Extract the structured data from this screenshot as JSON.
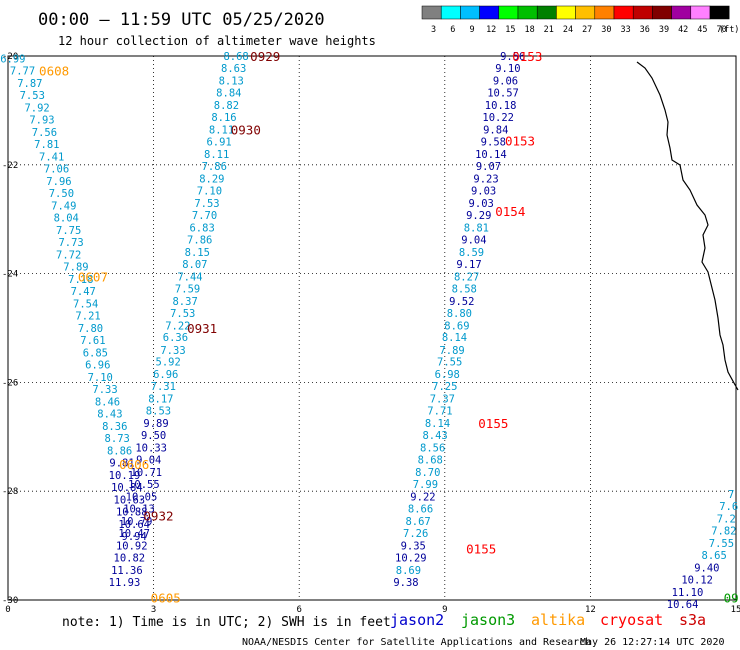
{
  "header": {
    "title": "00:00 – 11:59 UTC 05/25/2020",
    "subtitle": "12 hour collection of altimeter wave heights"
  },
  "colorbar": {
    "labels": [
      "3",
      "6",
      "9",
      "12",
      "15",
      "18",
      "21",
      "24",
      "27",
      "30",
      "33",
      "36",
      "39",
      "42",
      "45",
      "70",
      "(ft)"
    ],
    "colors": [
      "#808080",
      "#00ffff",
      "#00bfff",
      "#0000ff",
      "#00ff00",
      "#00bf00",
      "#008000",
      "#ffff00",
      "#ffbf00",
      "#ff8000",
      "#ff0000",
      "#bf0000",
      "#800000",
      "#a000a0",
      "#ff80ff",
      "#000000"
    ]
  },
  "footer": {
    "note": "note: 1) Time is in UTC; 2) SWH is in feet",
    "legend": [
      {
        "name": "jason2",
        "color": "#0000cc"
      },
      {
        "name": "jason3",
        "color": "#009900"
      },
      {
        "name": "altika",
        "color": "#ff9900"
      },
      {
        "name": "cryosat",
        "color": "#ff0000"
      },
      {
        "name": "s3a",
        "color": "#cc0000"
      }
    ],
    "credit_left": "NOAA/NESDIS Center for Satellite Applications and Research",
    "credit_right": "May 26 12:27:14 UTC 2020"
  },
  "chart_data": {
    "type": "scatter",
    "title": "00:00 – 11:59 UTC 05/25/2020",
    "subtitle": "12 hour collection of altimeter wave heights",
    "xlim": [
      0,
      15
    ],
    "ylim": [
      -30,
      -20
    ],
    "x_ticks": [
      "0",
      "3",
      "6",
      "9",
      "12",
      "15"
    ],
    "y_ticks": [
      "-20",
      "-22",
      "-24",
      "-26",
      "-28",
      "-30"
    ],
    "grid": true,
    "units": "ft",
    "value_colors": {
      "lt9": "#0099cc",
      "9to12": "#000099",
      "ge12": "#0000cc"
    },
    "time_labels": [
      {
        "text": "0608",
        "color": "#ff9900",
        "lon": 0.95,
        "lat": -20.27
      },
      {
        "text": "0607",
        "color": "#ff9900",
        "lon": 1.75,
        "lat": -24.05
      },
      {
        "text": "0606",
        "color": "#ff9900",
        "lon": 2.6,
        "lat": -27.5
      },
      {
        "text": "0605",
        "color": "#ff9900",
        "lon": 3.25,
        "lat": -29.95
      },
      {
        "text": "0929",
        "color": "#800000",
        "lon": 5.3,
        "lat": -20.0
      },
      {
        "text": "0930",
        "color": "#800000",
        "lon": 4.9,
        "lat": -21.35
      },
      {
        "text": "0931",
        "color": "#800000",
        "lon": 4.0,
        "lat": -25.0
      },
      {
        "text": "0932",
        "color": "#800000",
        "lon": 3.1,
        "lat": -28.45
      },
      {
        "text": "0153",
        "color": "#ff0000",
        "lon": 10.7,
        "lat": -20.0
      },
      {
        "text": "0153",
        "color": "#ff0000",
        "lon": 10.55,
        "lat": -21.55
      },
      {
        "text": "0154",
        "color": "#ff0000",
        "lon": 10.35,
        "lat": -22.85
      },
      {
        "text": "0155",
        "color": "#ff0000",
        "lon": 10.0,
        "lat": -26.75
      },
      {
        "text": "0155",
        "color": "#ff0000",
        "lon": 9.75,
        "lat": -29.05
      },
      {
        "text": "09",
        "color": "#009900",
        "lon": 14.9,
        "lat": -29.95
      }
    ],
    "series": [
      {
        "name": "altika",
        "track": "0605-0608",
        "points": [
          [
            0.1,
            -20.05,
            "6.99"
          ],
          [
            0.3,
            -20.27,
            "7.77"
          ],
          [
            0.45,
            -20.5,
            "7.87"
          ],
          [
            0.5,
            -20.72,
            "7.53"
          ],
          [
            0.6,
            -20.95,
            "7.92"
          ],
          [
            0.7,
            -21.17,
            "7.93"
          ],
          [
            0.75,
            -21.4,
            "7.56"
          ],
          [
            0.8,
            -21.62,
            "7.81"
          ],
          [
            0.9,
            -21.85,
            "7.41"
          ],
          [
            1.0,
            -22.07,
            "7.06"
          ],
          [
            1.05,
            -22.3,
            "7.96"
          ],
          [
            1.1,
            -22.52,
            "7.50"
          ],
          [
            1.15,
            -22.75,
            "7.49"
          ],
          [
            1.2,
            -22.97,
            "8.04"
          ],
          [
            1.25,
            -23.2,
            "7.75"
          ],
          [
            1.3,
            -23.42,
            "7.73"
          ],
          [
            1.25,
            -23.65,
            "7.72"
          ],
          [
            1.4,
            -23.87,
            "7.89"
          ],
          [
            1.5,
            -24.1,
            "7.18"
          ],
          [
            1.55,
            -24.32,
            "7.47"
          ],
          [
            1.6,
            -24.55,
            "7.54"
          ],
          [
            1.65,
            -24.77,
            "7.21"
          ],
          [
            1.7,
            -25.0,
            "7.80"
          ],
          [
            1.75,
            -25.22,
            "7.61"
          ],
          [
            1.8,
            -25.45,
            "6.85"
          ],
          [
            1.85,
            -25.67,
            "6.96"
          ],
          [
            1.9,
            -25.9,
            "7.10"
          ],
          [
            2.0,
            -26.12,
            "7.33"
          ],
          [
            2.05,
            -26.35,
            "8.46"
          ],
          [
            2.1,
            -26.57,
            "8.43"
          ],
          [
            2.2,
            -26.8,
            "8.36"
          ],
          [
            2.25,
            -27.02,
            "8.73"
          ],
          [
            2.3,
            -27.25,
            "8.86"
          ],
          [
            2.35,
            -27.47,
            "9.81"
          ],
          [
            2.4,
            -27.7,
            "10.19"
          ],
          [
            2.45,
            -27.92,
            "10.84"
          ],
          [
            2.5,
            -28.15,
            "10.63"
          ],
          [
            2.55,
            -28.37,
            "10.88"
          ],
          [
            2.6,
            -28.6,
            "10.64"
          ],
          [
            2.6,
            -28.82,
            "9.94"
          ]
        ]
      },
      {
        "name": "altika",
        "track": "0929-0932",
        "points": [
          [
            4.7,
            -20.0,
            "8.68"
          ],
          [
            4.65,
            -20.22,
            "8.63"
          ],
          [
            4.6,
            -20.45,
            "8.13"
          ],
          [
            4.55,
            -20.67,
            "8.84"
          ],
          [
            4.5,
            -20.9,
            "8.82"
          ],
          [
            4.45,
            -21.12,
            "8.16"
          ],
          [
            4.4,
            -21.35,
            "8.11"
          ],
          [
            4.35,
            -21.57,
            "6.91"
          ],
          [
            4.3,
            -21.8,
            "8.11"
          ],
          [
            4.25,
            -22.02,
            "7.86"
          ],
          [
            4.2,
            -22.25,
            "8.29"
          ],
          [
            4.15,
            -22.47,
            "7.10"
          ],
          [
            4.1,
            -22.7,
            "7.53"
          ],
          [
            4.05,
            -22.92,
            "7.70"
          ],
          [
            4.0,
            -23.15,
            "6.83"
          ],
          [
            3.95,
            -23.37,
            "7.86"
          ],
          [
            3.9,
            -23.6,
            "8.15"
          ],
          [
            3.85,
            -23.82,
            "8.07"
          ],
          [
            3.75,
            -24.05,
            "7.44"
          ],
          [
            3.7,
            -24.27,
            "7.59"
          ],
          [
            3.65,
            -24.5,
            "8.37"
          ],
          [
            3.6,
            -24.72,
            "7.53"
          ],
          [
            3.5,
            -24.95,
            "7.22"
          ],
          [
            3.45,
            -25.17,
            "6.36"
          ],
          [
            3.4,
            -25.4,
            "7.33"
          ],
          [
            3.3,
            -25.62,
            "5.92"
          ],
          [
            3.25,
            -25.85,
            "6.96"
          ],
          [
            3.2,
            -26.07,
            "7.31"
          ],
          [
            3.15,
            -26.3,
            "8.17"
          ],
          [
            3.1,
            -26.52,
            "8.53"
          ],
          [
            3.05,
            -26.75,
            "9.89"
          ],
          [
            3.0,
            -26.97,
            "9.50"
          ],
          [
            2.95,
            -27.2,
            "10.33"
          ],
          [
            2.9,
            -27.42,
            "9.04"
          ],
          [
            2.85,
            -27.65,
            "10.71"
          ],
          [
            2.8,
            -27.87,
            "10.55"
          ],
          [
            2.75,
            -28.1,
            "10.05"
          ],
          [
            2.7,
            -28.32,
            "10.13"
          ],
          [
            2.65,
            -28.55,
            "10.79"
          ],
          [
            2.6,
            -28.77,
            "10.47"
          ],
          [
            2.55,
            -29.0,
            "10.92"
          ],
          [
            2.5,
            -29.22,
            "10.82"
          ],
          [
            2.45,
            -29.45,
            "11.36"
          ],
          [
            2.4,
            -29.67,
            "11.93"
          ]
        ]
      },
      {
        "name": "cryosat",
        "track": "0153-0155",
        "points": [
          [
            10.4,
            -20.0,
            "9.56"
          ],
          [
            10.3,
            -20.22,
            "9.10"
          ],
          [
            10.25,
            -20.45,
            "9.06"
          ],
          [
            10.2,
            -20.67,
            "10.57"
          ],
          [
            10.15,
            -20.9,
            "10.18"
          ],
          [
            10.1,
            -21.12,
            "10.22"
          ],
          [
            10.05,
            -21.35,
            "9.84"
          ],
          [
            10.0,
            -21.57,
            "9.58"
          ],
          [
            9.95,
            -21.8,
            "10.14"
          ],
          [
            9.9,
            -22.02,
            "9.07"
          ],
          [
            9.85,
            -22.25,
            "9.23"
          ],
          [
            9.8,
            -22.47,
            "9.03"
          ],
          [
            9.75,
            -22.7,
            "9.03"
          ],
          [
            9.7,
            -22.92,
            "9.29"
          ],
          [
            9.65,
            -23.15,
            "8.81"
          ],
          [
            9.6,
            -23.37,
            "9.04"
          ],
          [
            9.55,
            -23.6,
            "8.59"
          ],
          [
            9.5,
            -23.82,
            "9.17"
          ],
          [
            9.45,
            -24.05,
            "8.27"
          ],
          [
            9.4,
            -24.27,
            "8.58"
          ],
          [
            9.35,
            -24.5,
            "9.52"
          ],
          [
            9.3,
            -24.72,
            "8.80"
          ],
          [
            9.25,
            -24.95,
            "8.69"
          ],
          [
            9.2,
            -25.17,
            "8.14"
          ],
          [
            9.15,
            -25.4,
            "7.89"
          ],
          [
            9.1,
            -25.62,
            "7.55"
          ],
          [
            9.05,
            -25.85,
            "6.98"
          ],
          [
            9.0,
            -26.07,
            "7.25"
          ],
          [
            8.95,
            -26.3,
            "7.37"
          ],
          [
            8.9,
            -26.52,
            "7.71"
          ],
          [
            8.85,
            -26.75,
            "8.14"
          ],
          [
            8.8,
            -26.97,
            "8.43"
          ],
          [
            8.75,
            -27.2,
            "8.56"
          ],
          [
            8.7,
            -27.42,
            "8.68"
          ],
          [
            8.65,
            -27.65,
            "8.70"
          ],
          [
            8.6,
            -27.87,
            "7.99"
          ],
          [
            8.55,
            -28.1,
            "9.22"
          ],
          [
            8.5,
            -28.32,
            "8.66"
          ],
          [
            8.45,
            -28.55,
            "8.67"
          ],
          [
            8.4,
            -28.77,
            "7.26"
          ],
          [
            8.35,
            -29.0,
            "9.35"
          ],
          [
            8.3,
            -29.22,
            "10.29"
          ],
          [
            8.25,
            -29.45,
            "8.69"
          ],
          [
            8.2,
            -29.67,
            "9.38"
          ]
        ]
      },
      {
        "name": "jason3",
        "track": "09",
        "points": [
          [
            14.9,
            -28.05,
            "7"
          ],
          [
            14.85,
            -28.27,
            "7.6"
          ],
          [
            14.8,
            -28.5,
            "7.2"
          ],
          [
            14.75,
            -28.72,
            "7.82"
          ],
          [
            14.7,
            -28.95,
            "7.55"
          ],
          [
            14.55,
            -29.17,
            "8.65"
          ],
          [
            14.4,
            -29.4,
            "9.40"
          ],
          [
            14.2,
            -29.62,
            "10.12"
          ],
          [
            14.0,
            -29.85,
            "11.10"
          ],
          [
            13.9,
            -30.07,
            "10.64"
          ]
        ]
      }
    ]
  }
}
